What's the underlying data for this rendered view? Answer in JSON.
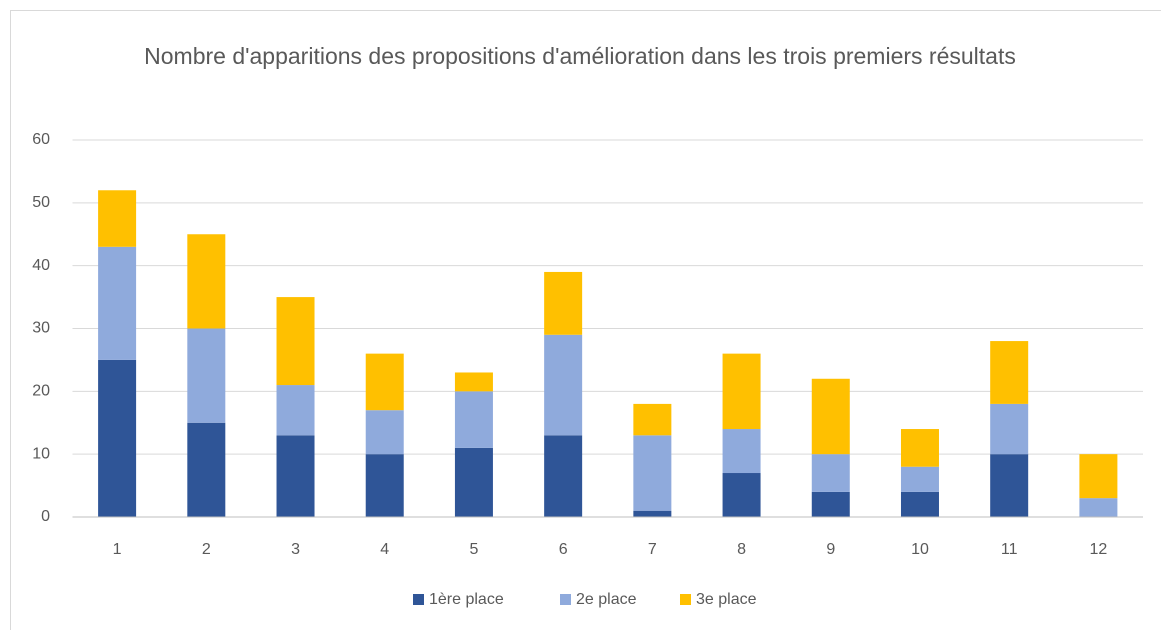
{
  "chart_data": {
    "type": "stacked_bar",
    "title": "Nombre d'apparitions des propositions d'amélioration dans les trois premiers résultats",
    "categories": [
      "1",
      "2",
      "3",
      "4",
      "5",
      "6",
      "7",
      "8",
      "9",
      "10",
      "11",
      "12"
    ],
    "series": [
      {
        "name": "1ère place",
        "color": "#2f5597",
        "values": [
          25,
          15,
          13,
          10,
          11,
          13,
          1,
          7,
          4,
          4,
          10,
          0
        ]
      },
      {
        "name": "2e place",
        "color": "#8faadc",
        "values": [
          18,
          15,
          8,
          7,
          9,
          16,
          12,
          7,
          6,
          4,
          8,
          3
        ]
      },
      {
        "name": "3e place",
        "color": "#ffc000",
        "values": [
          9,
          15,
          14,
          9,
          3,
          10,
          5,
          12,
          12,
          6,
          10,
          7
        ]
      }
    ],
    "ylim": [
      0,
      60
    ],
    "yticks": [
      0,
      10,
      20,
      30,
      40,
      50,
      60
    ],
    "grid": true,
    "legend": "bottom"
  }
}
